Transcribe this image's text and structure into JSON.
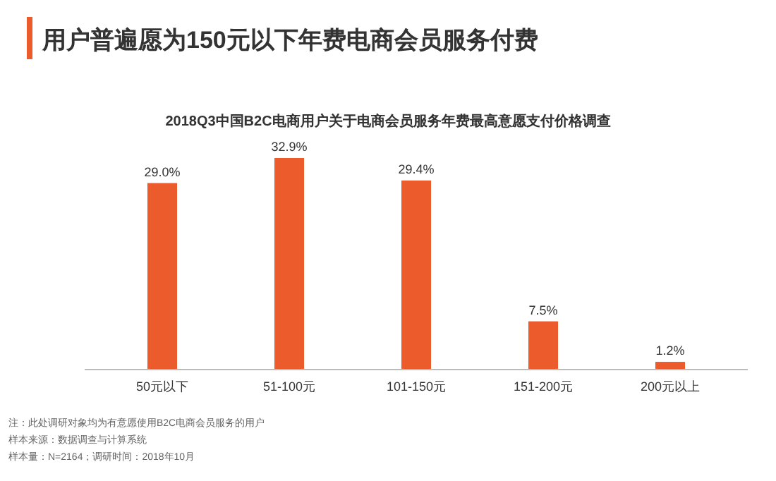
{
  "chart_data": {
    "type": "bar",
    "title": "用户普遍愿为150元以下年费电商会员服务付费",
    "subtitle": "2018Q3中国B2C电商用户关于电商会员服务年费最高意愿支付价格调查",
    "categories": [
      "50元以下",
      "51-100元",
      "101-150元",
      "151-200元",
      "200元以上"
    ],
    "values": [
      29.0,
      32.9,
      29.4,
      7.5,
      1.2
    ],
    "value_labels": [
      "29.0%",
      "32.9%",
      "29.4%",
      "7.5%",
      "1.2%"
    ],
    "color": "#ec5b2b",
    "annotations": [
      "注：此处调研对象均为有意愿使用B2C电商会员服务的用户",
      "样本来源：数据调查与计算系统",
      "样本量：N=2164；调研时间：2018年10月"
    ]
  }
}
